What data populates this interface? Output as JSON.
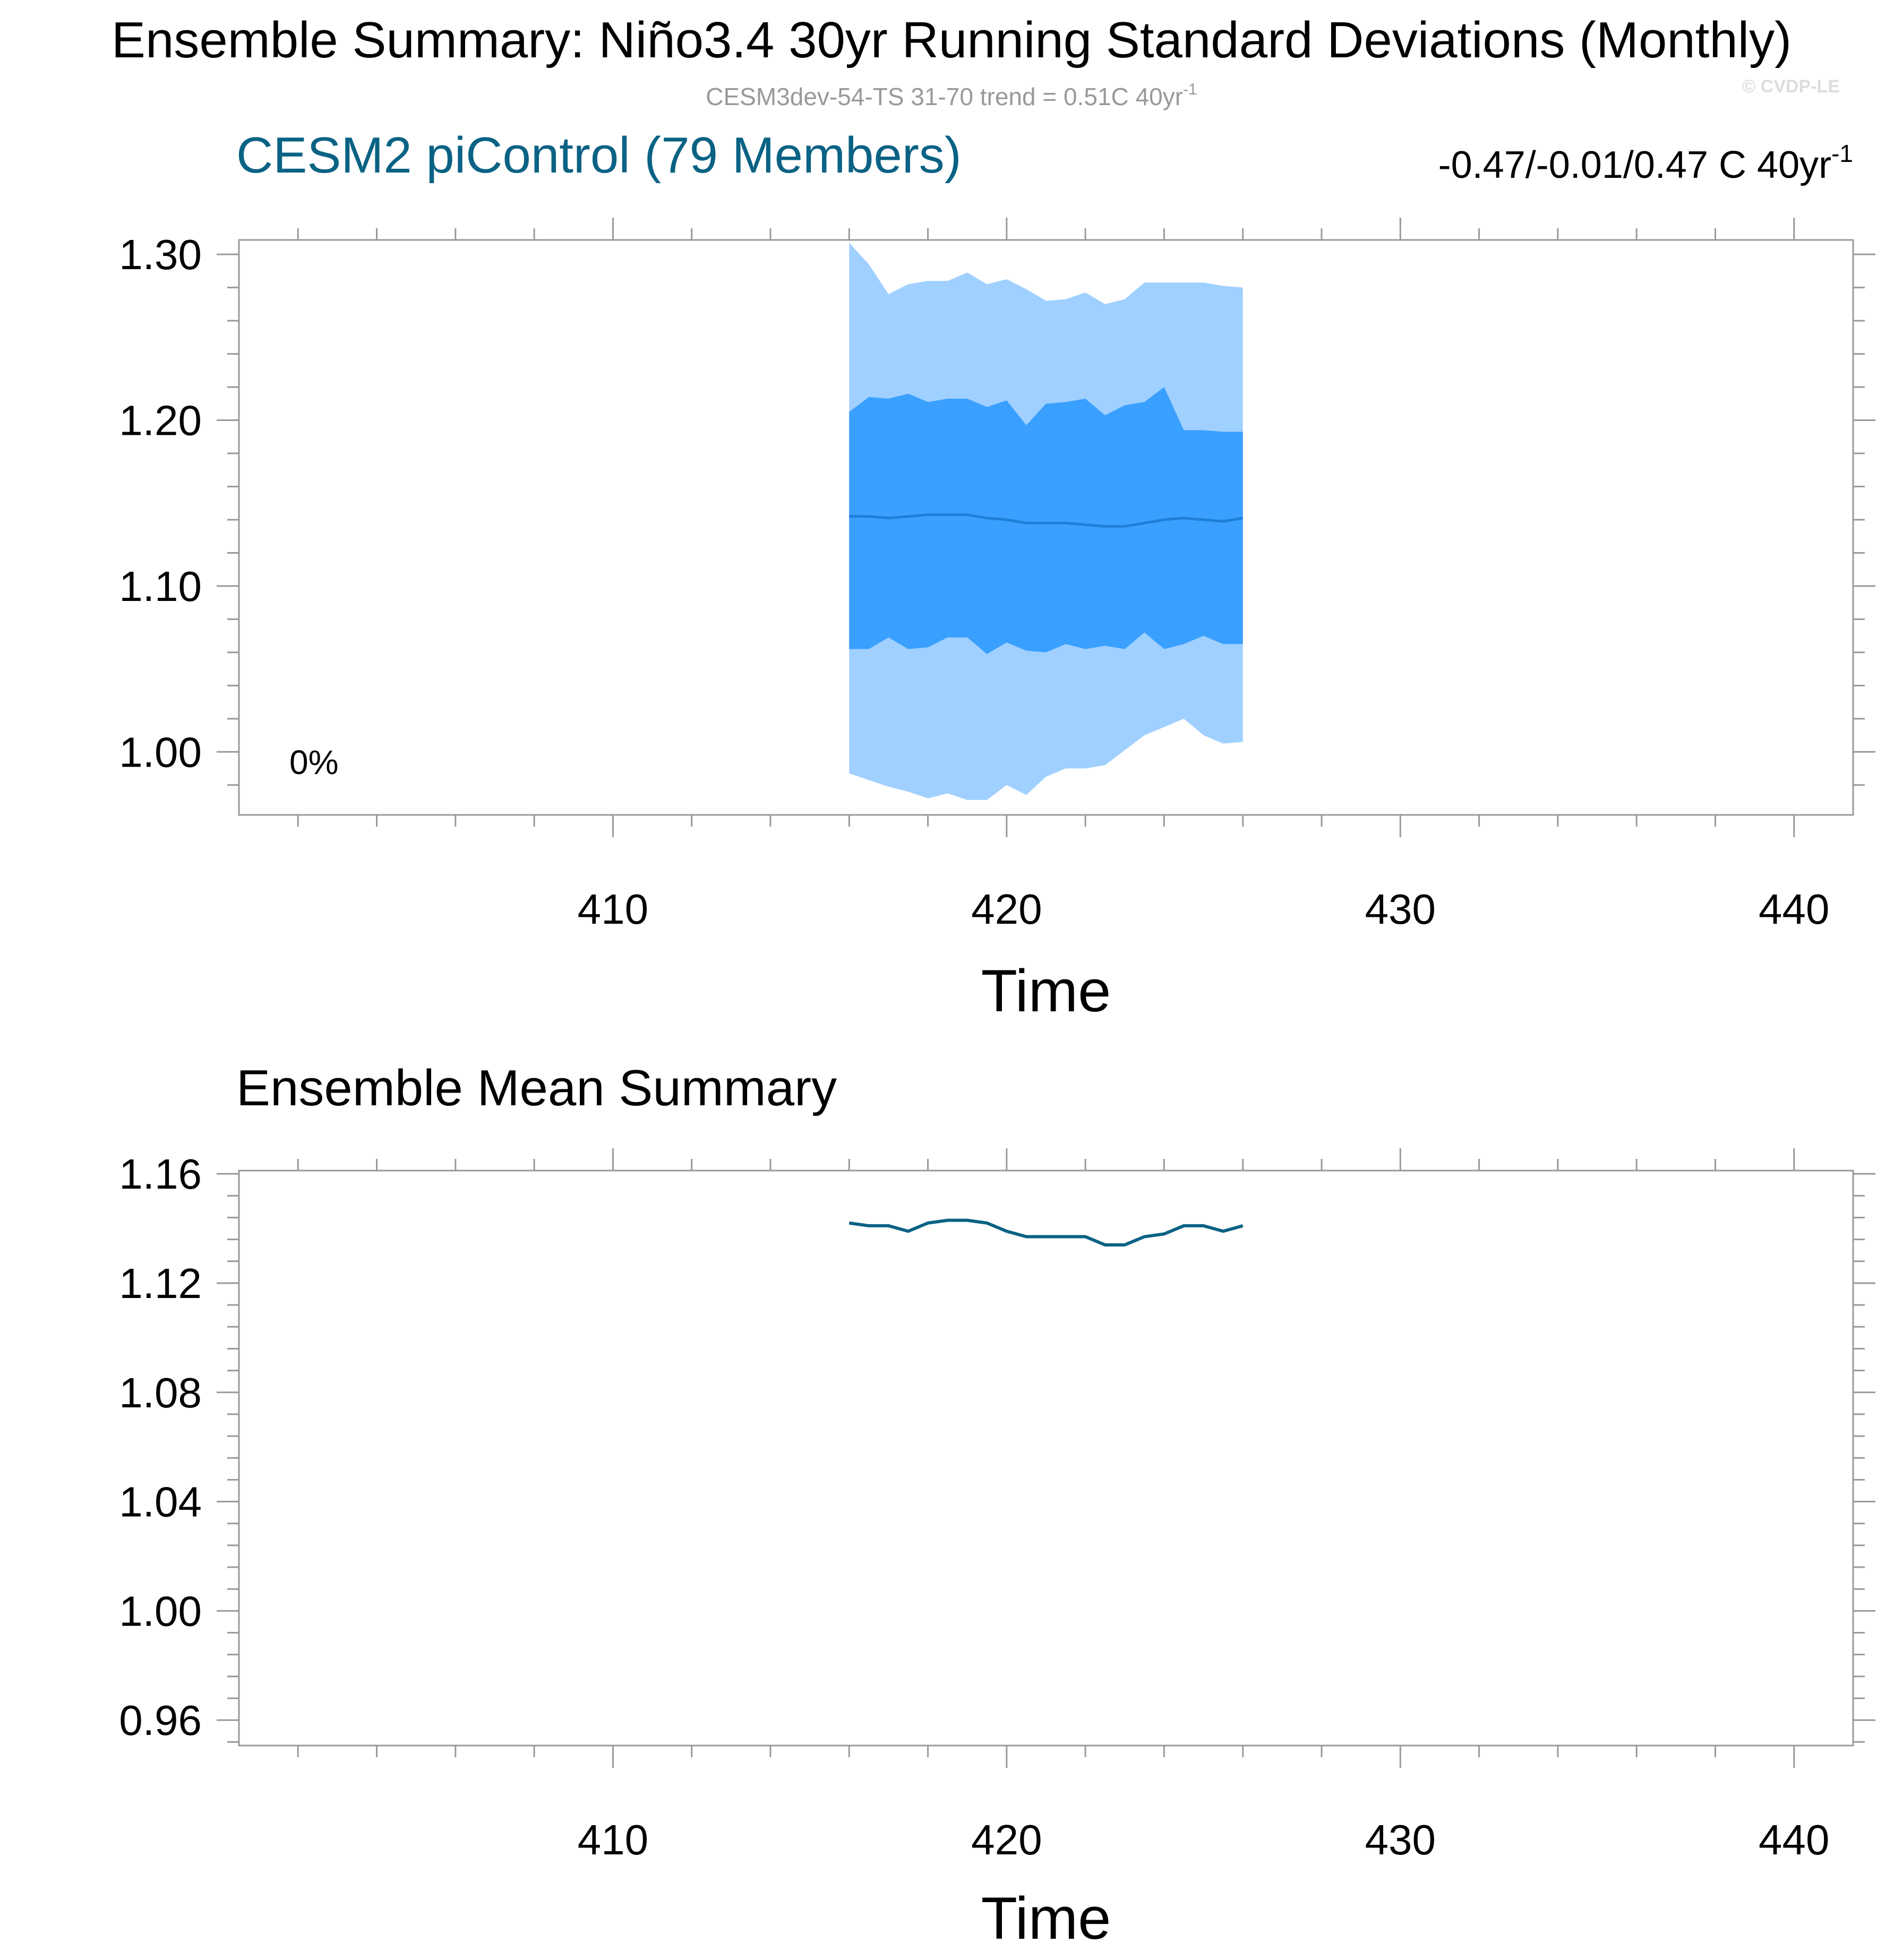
{
  "figure": {
    "title": "Ensemble Summary: Niño3.4 30yr Running Standard Deviations (Monthly)",
    "subtitle_main": "CESM3dev-54-TS 31-70 trend = 0.51C 40yr",
    "subtitle_sup": "-1",
    "copyright": "© CVDP-LE"
  },
  "colors": {
    "outer_band": "#a0d0ff",
    "inner_band": "#3aa0ff",
    "median_line": "#1e7fd8",
    "mean_line": "#0a6284",
    "panel_title": "#0a6284",
    "axis": "#999999",
    "gray_text": "#999999"
  },
  "chart_data": [
    {
      "type": "area",
      "title": "CESM2 piControl (79 Members)",
      "title_right_main": "-0.47/-0.01/0.47 C 40yr",
      "title_right_sup": "-1",
      "annotation": "0%",
      "xlabel": "Time",
      "ylabel": "",
      "xlim": [
        400.5,
        441.5
      ],
      "ylim": [
        0.962,
        1.3087
      ],
      "xticks": [
        410,
        420,
        430,
        440
      ],
      "xtick_labels": [
        "410",
        "420",
        "430",
        "440"
      ],
      "yticks": [
        1.0,
        1.1,
        1.2,
        1.3
      ],
      "ytick_labels": [
        "1.00",
        "1.10",
        "1.20",
        "1.30"
      ],
      "grid": false,
      "x": [
        416,
        416.5,
        417,
        417.5,
        418,
        418.5,
        419,
        419.5,
        420,
        420.5,
        421,
        421.5,
        422,
        422.5,
        423,
        423.5,
        424,
        424.5,
        425,
        425.5,
        426
      ],
      "series": [
        {
          "role": "outer_upper",
          "values": [
            1.307,
            1.294,
            1.276,
            1.282,
            1.284,
            1.284,
            1.289,
            1.282,
            1.285,
            1.279,
            1.272,
            1.273,
            1.277,
            1.27,
            1.273,
            1.283,
            1.283,
            1.283,
            1.283,
            1.281,
            1.28
          ]
        },
        {
          "role": "inner_upper",
          "values": [
            1.205,
            1.214,
            1.213,
            1.216,
            1.211,
            1.213,
            1.213,
            1.208,
            1.212,
            1.197,
            1.21,
            1.211,
            1.213,
            1.203,
            1.209,
            1.211,
            1.22,
            1.194,
            1.194,
            1.193,
            1.193
          ]
        },
        {
          "role": "median",
          "values": [
            1.142,
            1.142,
            1.141,
            1.142,
            1.143,
            1.143,
            1.143,
            1.141,
            1.14,
            1.138,
            1.138,
            1.138,
            1.137,
            1.136,
            1.136,
            1.138,
            1.14,
            1.141,
            1.14,
            1.139,
            1.141
          ]
        },
        {
          "role": "inner_lower",
          "values": [
            1.062,
            1.062,
            1.069,
            1.062,
            1.063,
            1.069,
            1.069,
            1.059,
            1.066,
            1.061,
            1.06,
            1.065,
            1.062,
            1.064,
            1.062,
            1.072,
            1.062,
            1.065,
            1.07,
            1.065,
            1.065
          ]
        },
        {
          "role": "outer_lower",
          "values": [
            0.987,
            0.983,
            0.979,
            0.976,
            0.972,
            0.975,
            0.971,
            0.971,
            0.98,
            0.974,
            0.985,
            0.99,
            0.99,
            0.992,
            1.001,
            1.01,
            1.015,
            1.02,
            1.01,
            1.005,
            1.006
          ]
        }
      ]
    },
    {
      "type": "line",
      "title": "Ensemble Mean Summary",
      "xlabel": "Time",
      "ylabel": "",
      "xlim": [
        400.5,
        441.5
      ],
      "ylim": [
        0.9507,
        1.1612
      ],
      "xticks": [
        410,
        420,
        430,
        440
      ],
      "xtick_labels": [
        "410",
        "420",
        "430",
        "440"
      ],
      "yticks": [
        0.96,
        1.0,
        1.04,
        1.08,
        1.12,
        1.16
      ],
      "ytick_labels": [
        "0.96",
        "1.00",
        "1.04",
        "1.08",
        "1.12",
        "1.16"
      ],
      "grid": false,
      "x": [
        416,
        416.5,
        417,
        417.5,
        418,
        418.5,
        419,
        419.5,
        420,
        420.5,
        421,
        421.5,
        422,
        422.5,
        423,
        423.5,
        424,
        424.5,
        425,
        425.5,
        426
      ],
      "series": [
        {
          "role": "mean",
          "values": [
            1.142,
            1.141,
            1.141,
            1.139,
            1.142,
            1.143,
            1.143,
            1.142,
            1.139,
            1.137,
            1.137,
            1.137,
            1.137,
            1.134,
            1.134,
            1.137,
            1.138,
            1.141,
            1.141,
            1.139,
            1.141
          ]
        }
      ]
    }
  ]
}
